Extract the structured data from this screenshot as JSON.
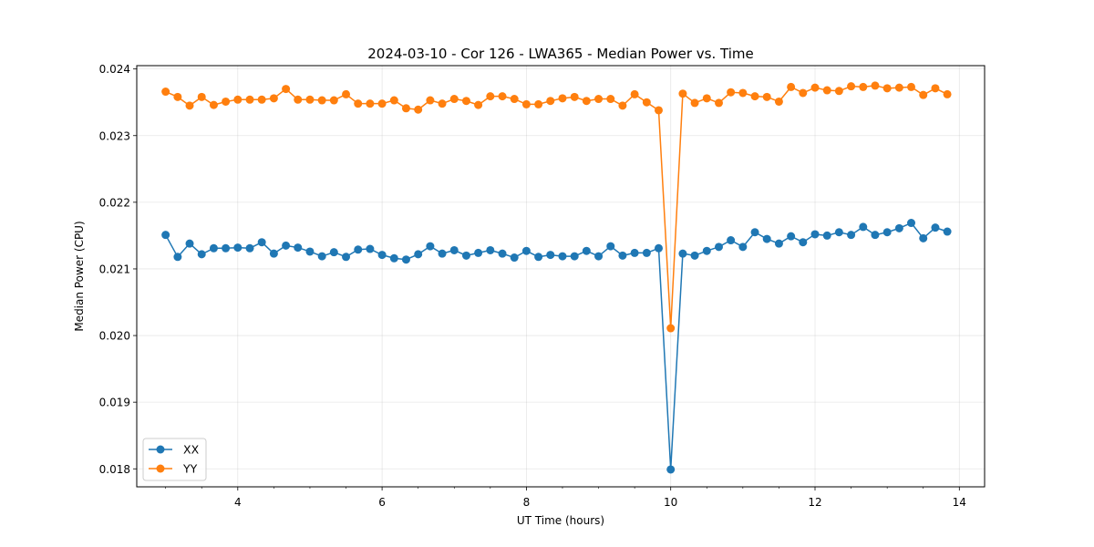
{
  "chart_data": {
    "type": "line",
    "title": "2024-03-10 - Cor 126 - LWA365 - Median Power vs. Time",
    "xlabel": "UT Time (hours)",
    "ylabel": "Median Power (CPU)",
    "xlim": [
      2.6,
      14.35
    ],
    "ylim": [
      0.01773,
      0.02405
    ],
    "xticks": [
      4,
      6,
      8,
      10,
      12,
      14
    ],
    "xtick_labels": [
      "4",
      "6",
      "8",
      "10",
      "12",
      "14"
    ],
    "yticks": [
      0.018,
      0.019,
      0.02,
      0.021,
      0.022,
      0.023,
      0.024
    ],
    "ytick_labels": [
      "0.018",
      "0.019",
      "0.020",
      "0.021",
      "0.022",
      "0.023",
      "0.024"
    ],
    "grid": true,
    "legend_position": "bottom-left",
    "x": [
      3.0,
      3.167,
      3.333,
      3.5,
      3.667,
      3.833,
      4.0,
      4.167,
      4.333,
      4.5,
      4.667,
      4.833,
      5.0,
      5.167,
      5.333,
      5.5,
      5.667,
      5.833,
      6.0,
      6.167,
      6.333,
      6.5,
      6.667,
      6.833,
      7.0,
      7.167,
      7.333,
      7.5,
      7.667,
      7.833,
      8.0,
      8.167,
      8.333,
      8.5,
      8.667,
      8.833,
      9.0,
      9.167,
      9.333,
      9.5,
      9.667,
      9.833,
      10.0,
      10.167,
      10.333,
      10.5,
      10.667,
      10.833,
      11.0,
      11.167,
      11.333,
      11.5,
      11.667,
      11.833,
      12.0,
      12.167,
      12.333,
      12.5,
      12.667,
      12.833,
      13.0,
      13.167,
      13.333,
      13.5,
      13.667,
      13.833
    ],
    "series": [
      {
        "name": "XX",
        "color": "#1f77b4",
        "values": [
          0.02151,
          0.02118,
          0.02138,
          0.02122,
          0.02131,
          0.02131,
          0.02132,
          0.02131,
          0.0214,
          0.02123,
          0.02135,
          0.02132,
          0.02126,
          0.02119,
          0.02125,
          0.02118,
          0.02129,
          0.0213,
          0.02121,
          0.02116,
          0.02114,
          0.02122,
          0.02134,
          0.02123,
          0.02128,
          0.0212,
          0.02124,
          0.02128,
          0.02123,
          0.02117,
          0.02127,
          0.02118,
          0.02121,
          0.02119,
          0.02119,
          0.02127,
          0.02119,
          0.02134,
          0.0212,
          0.02124,
          0.02124,
          0.02131,
          0.01799,
          0.02123,
          0.0212,
          0.02127,
          0.02133,
          0.02143,
          0.02133,
          0.02155,
          0.02145,
          0.02138,
          0.02149,
          0.0214,
          0.02152,
          0.0215,
          0.02155,
          0.02151,
          0.02163,
          0.02151,
          0.02155,
          0.02161,
          0.02169,
          0.02146,
          0.02162,
          0.02156
        ]
      },
      {
        "name": "YY",
        "color": "#ff7f0e",
        "values": [
          0.02366,
          0.02358,
          0.02345,
          0.02358,
          0.02346,
          0.02351,
          0.02354,
          0.02354,
          0.02354,
          0.02356,
          0.0237,
          0.02354,
          0.02354,
          0.02353,
          0.02353,
          0.02362,
          0.02348,
          0.02348,
          0.02348,
          0.02353,
          0.02341,
          0.02339,
          0.02353,
          0.02348,
          0.02355,
          0.02352,
          0.02346,
          0.02359,
          0.02359,
          0.02355,
          0.02347,
          0.02347,
          0.02352,
          0.02356,
          0.02358,
          0.02352,
          0.02355,
          0.02355,
          0.02345,
          0.02362,
          0.0235,
          0.02338,
          0.02011,
          0.02363,
          0.02349,
          0.02356,
          0.02349,
          0.02365,
          0.02364,
          0.02359,
          0.02358,
          0.02351,
          0.02373,
          0.02364,
          0.02372,
          0.02368,
          0.02367,
          0.02374,
          0.02373,
          0.02375,
          0.02371,
          0.02372,
          0.02373,
          0.02361,
          0.02371,
          0.02362
        ]
      }
    ]
  }
}
